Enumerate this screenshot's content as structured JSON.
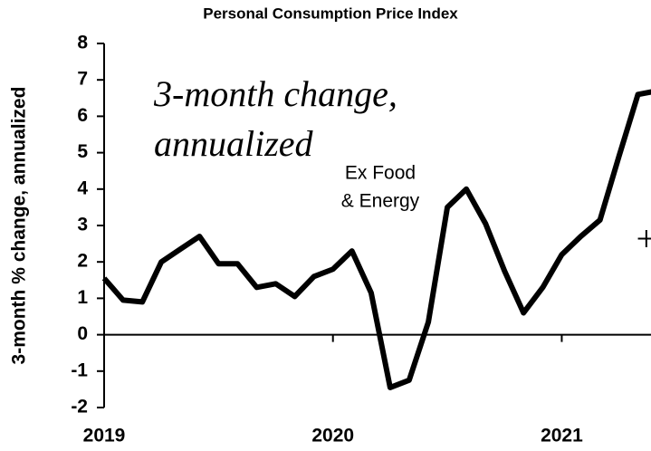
{
  "chart_data": {
    "type": "line",
    "title": "Personal Consumption Price Index",
    "ylabel": "3-month % change, annualized",
    "annotations": [
      "Ex Food",
      "& Energy"
    ],
    "handwritten": [
      "3-month change,",
      "annualized",
      "+"
    ],
    "x": [
      2019,
      2019.083,
      2019.167,
      2019.25,
      2019.333,
      2019.417,
      2019.5,
      2019.583,
      2019.667,
      2019.75,
      2019.833,
      2019.917,
      2020,
      2020.083,
      2020.167,
      2020.25,
      2020.333,
      2020.417,
      2020.5,
      2020.583,
      2020.667,
      2020.75,
      2020.833,
      2020.917,
      2021,
      2021.083,
      2021.167,
      2021.25,
      2021.333,
      2021.417
    ],
    "series": [
      {
        "name": "Ex Food & Energy",
        "color": "#000000",
        "values": [
          1.55,
          0.95,
          0.9,
          2.0,
          2.35,
          2.7,
          1.95,
          1.95,
          1.3,
          1.4,
          1.05,
          1.6,
          1.8,
          2.3,
          1.15,
          -1.45,
          -1.25,
          0.35,
          3.5,
          4.0,
          3.05,
          1.75,
          0.6,
          1.3,
          2.2,
          2.7,
          3.15,
          4.9,
          6.6,
          6.7
        ]
      }
    ],
    "xlim": [
      2019,
      2021.39
    ],
    "xticks": [
      2019,
      2020,
      2021
    ],
    "ylim": [
      -2,
      8
    ],
    "yticks": [
      -2,
      -1,
      0,
      1,
      2,
      3,
      4,
      5,
      6,
      7,
      8
    ]
  }
}
